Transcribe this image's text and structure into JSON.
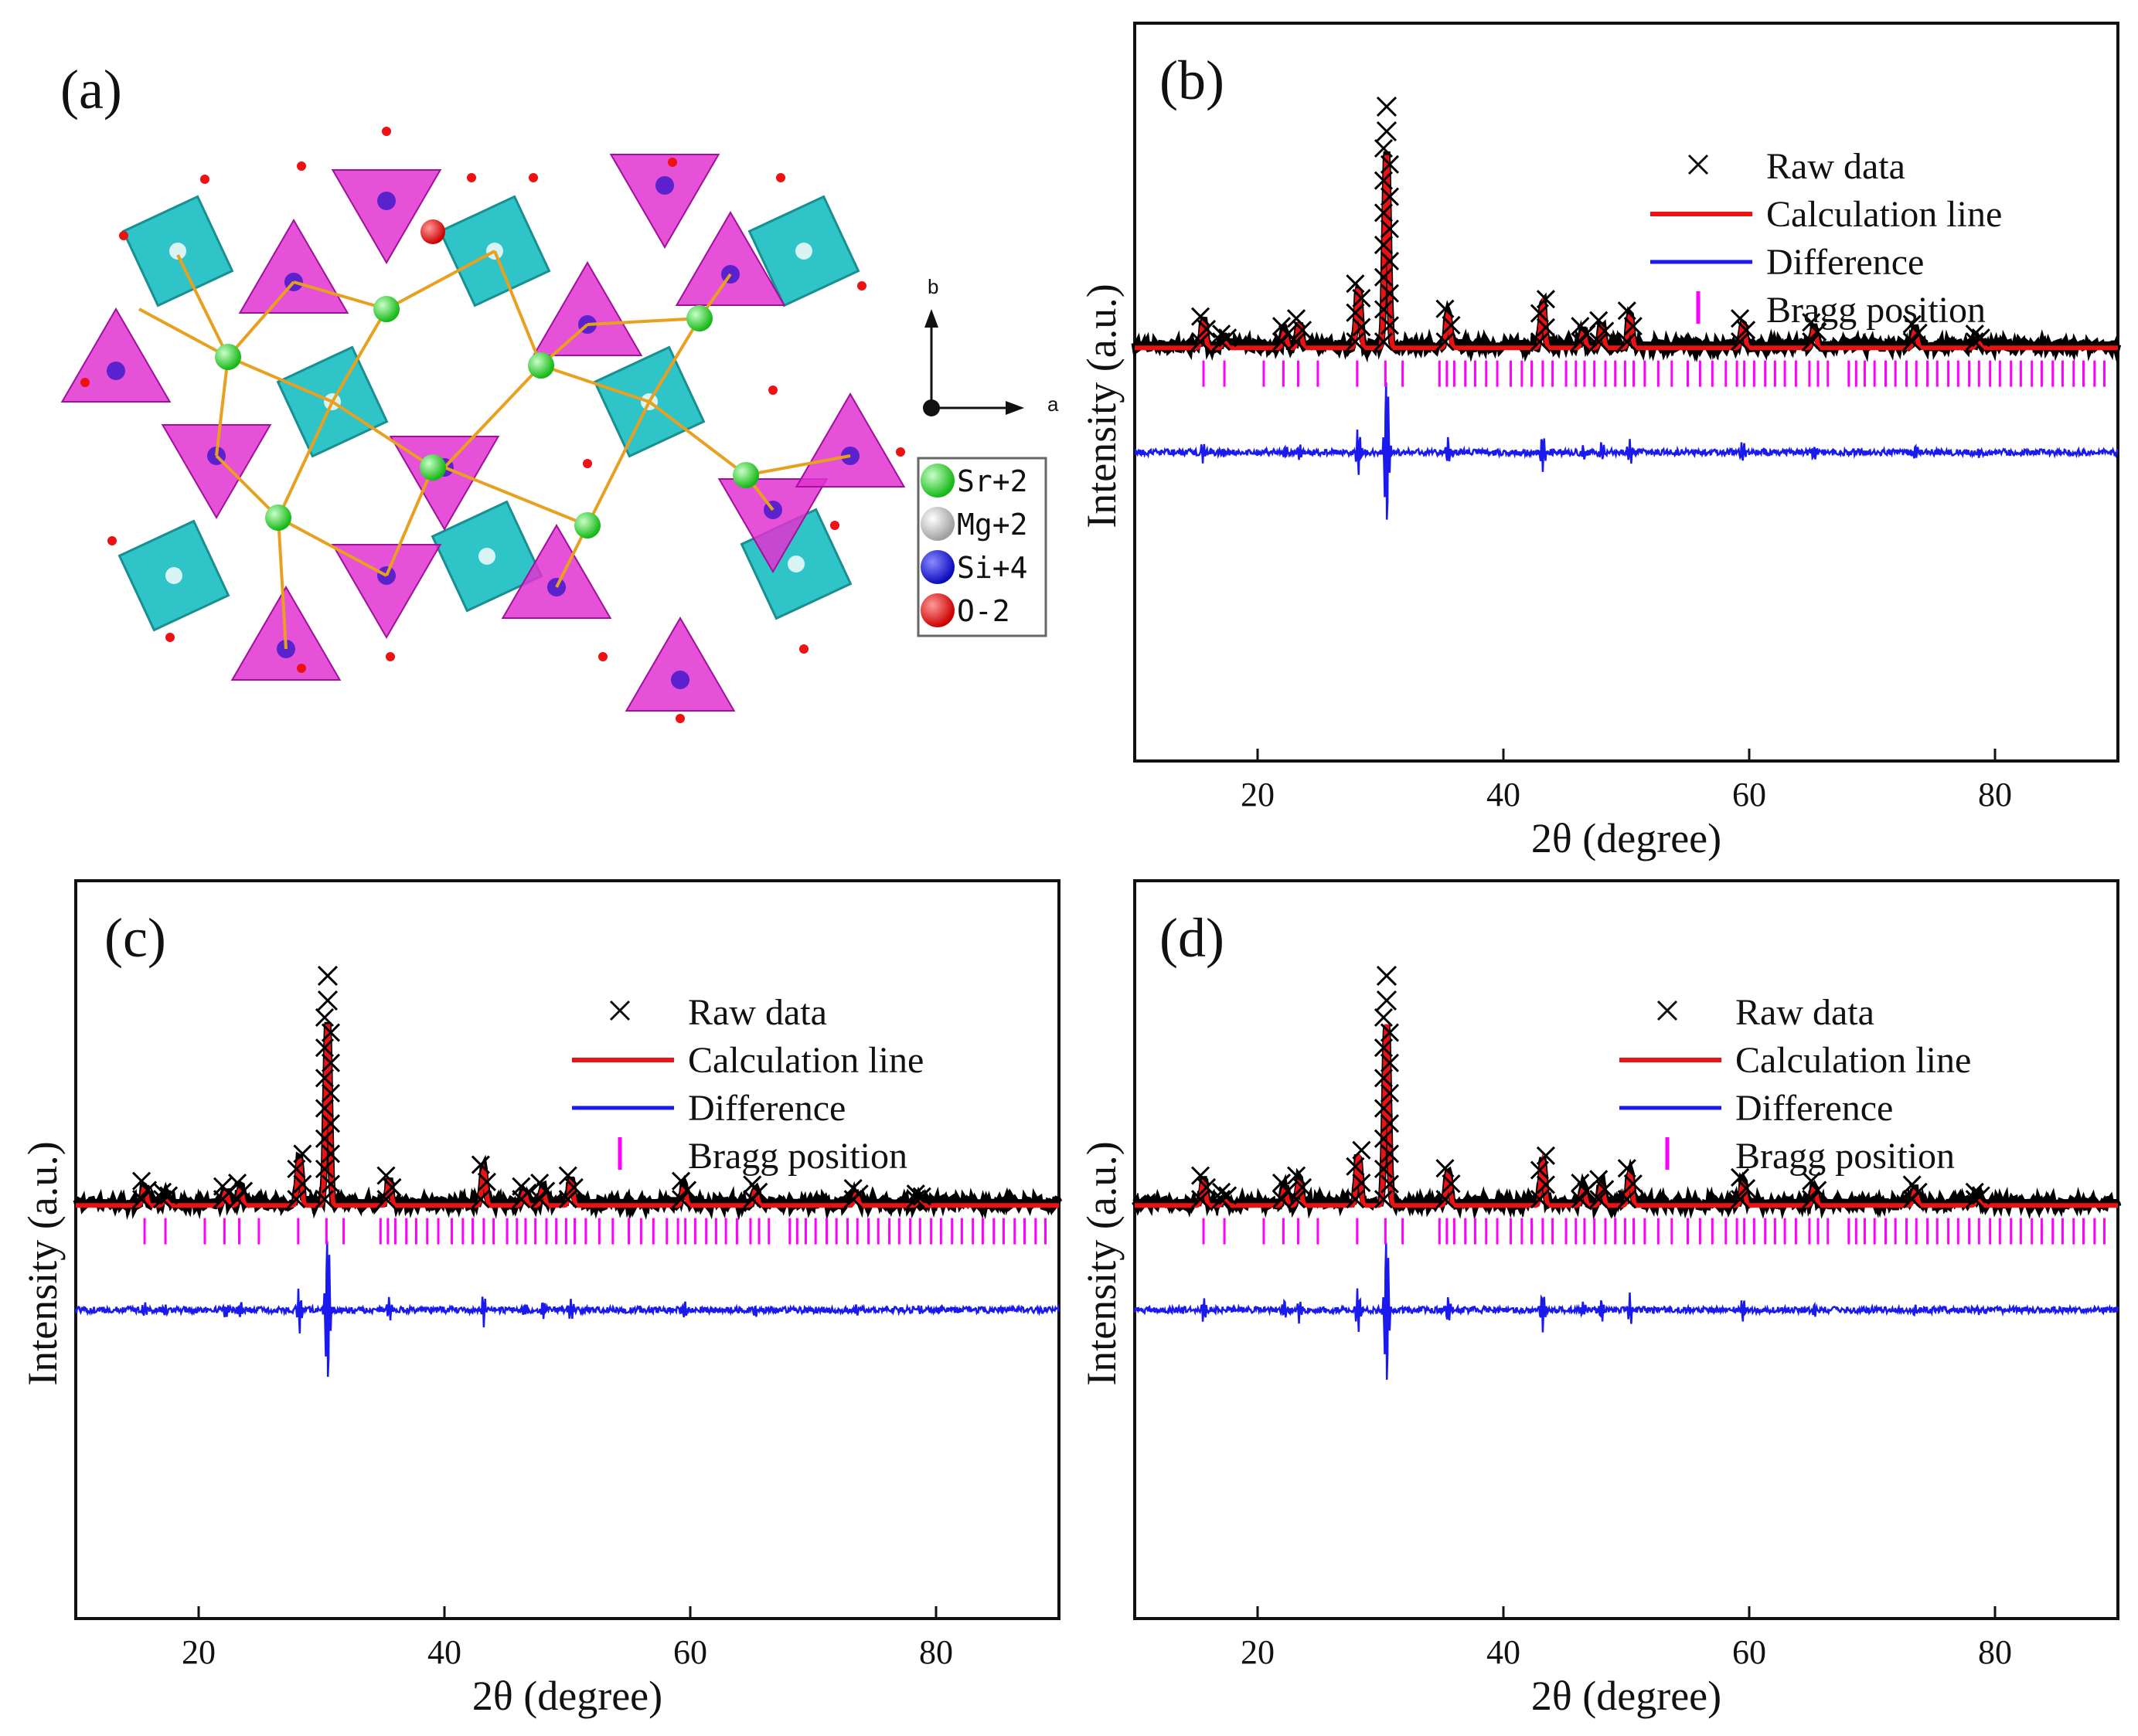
{
  "panel_a": {
    "label": "(a)",
    "axes": {
      "b_label": "b",
      "a_label": "a"
    },
    "legend": [
      {
        "name": "Sr+2",
        "color": "#22dd22"
      },
      {
        "name": "Mg+2",
        "color": "#dddddd"
      },
      {
        "name": "Si+4",
        "color": "#1a1aee"
      },
      {
        "name": "O-2",
        "color": "#ee1111"
      }
    ],
    "colors": {
      "octahedron": "#2ec4c8",
      "tetrahedron": "#e033d0",
      "bond": "#e8a020"
    }
  },
  "chart_data": [
    {
      "id": "b",
      "type": "line",
      "label": "(b)",
      "xlabel": "2θ (degree)",
      "ylabel": "Intensity (a.u.)",
      "xlim": [
        10,
        90
      ],
      "xticks": [
        20,
        40,
        60,
        80
      ],
      "legend": [
        "Raw data",
        "Calculation line",
        "Difference",
        "Bragg position"
      ],
      "peaks": [
        [
          15.6,
          0.13
        ],
        [
          17.3,
          0.04
        ],
        [
          22.2,
          0.08
        ],
        [
          23.4,
          0.12
        ],
        [
          28.2,
          0.3
        ],
        [
          30.5,
          1.0
        ],
        [
          35.5,
          0.17
        ],
        [
          43.2,
          0.22
        ],
        [
          46.5,
          0.08
        ],
        [
          48.0,
          0.11
        ],
        [
          50.3,
          0.16
        ],
        [
          59.5,
          0.12
        ],
        [
          65.3,
          0.1
        ],
        [
          73.5,
          0.09
        ],
        [
          78.6,
          0.04
        ]
      ],
      "bragg": [
        15.6,
        17.3,
        20.5,
        22.1,
        23.3,
        24.9,
        28.1,
        30.4,
        31.8,
        34.8,
        35.4,
        36.0,
        36.9,
        37.7,
        38.6,
        39.5,
        40.6,
        41.5,
        42.3,
        43.2,
        44.0,
        45.1,
        45.9,
        46.6,
        47.4,
        48.3,
        49.1,
        49.9,
        50.6,
        51.5,
        52.6,
        53.7,
        55.0,
        56.0,
        57.0,
        58.1,
        59.0,
        59.6,
        60.4,
        61.3,
        62.1,
        62.9,
        63.8,
        64.9,
        65.6,
        66.4,
        68.1,
        68.7,
        69.4,
        70.2,
        71.1,
        71.9,
        72.8,
        73.6,
        74.5,
        75.3,
        76.2,
        77.0,
        77.9,
        78.7,
        79.6,
        80.4,
        81.3,
        82.1,
        83.0,
        83.8,
        84.7,
        85.5,
        86.4,
        87.2,
        88.1,
        88.9
      ]
    },
    {
      "id": "c",
      "type": "line",
      "label": "(c)",
      "xlabel": "2θ (degree)",
      "ylabel": "Intensity (a.u.)",
      "xlim": [
        10,
        90
      ],
      "xticks": [
        20,
        40,
        60,
        80
      ],
      "legend": [
        "Raw data",
        "Calculation line",
        "Difference",
        "Bragg position"
      ],
      "peaks": [
        [
          15.6,
          0.1
        ],
        [
          17.3,
          0.04
        ],
        [
          22.2,
          0.07
        ],
        [
          23.4,
          0.09
        ],
        [
          28.2,
          0.25
        ],
        [
          30.5,
          1.0
        ],
        [
          35.5,
          0.13
        ],
        [
          43.2,
          0.19
        ],
        [
          46.5,
          0.07
        ],
        [
          48.0,
          0.09
        ],
        [
          50.3,
          0.13
        ],
        [
          59.5,
          0.1
        ],
        [
          65.3,
          0.08
        ],
        [
          73.5,
          0.06
        ],
        [
          78.6,
          0.03
        ]
      ],
      "bragg": [
        15.6,
        17.3,
        20.5,
        22.1,
        23.3,
        24.9,
        28.1,
        30.4,
        31.8,
        34.8,
        35.4,
        36.0,
        36.9,
        37.7,
        38.6,
        39.5,
        40.6,
        41.5,
        42.3,
        43.2,
        44.0,
        45.1,
        45.9,
        46.6,
        47.4,
        48.3,
        49.1,
        49.9,
        50.6,
        51.5,
        52.6,
        53.7,
        55.0,
        56.0,
        57.0,
        58.1,
        59.0,
        59.6,
        60.4,
        61.3,
        62.1,
        62.9,
        63.8,
        64.9,
        65.6,
        66.4,
        68.1,
        68.7,
        69.4,
        70.2,
        71.1,
        71.9,
        72.8,
        73.6,
        74.5,
        75.3,
        76.2,
        77.0,
        77.9,
        78.7,
        79.6,
        80.4,
        81.3,
        82.1,
        83.0,
        83.8,
        84.7,
        85.5,
        86.4,
        87.2,
        88.1,
        88.9
      ]
    },
    {
      "id": "d",
      "type": "line",
      "label": "(d)",
      "xlabel": "2θ (degree)",
      "ylabel": "Intensity (a.u.)",
      "xlim": [
        10,
        90
      ],
      "xticks": [
        20,
        40,
        60,
        80
      ],
      "legend": [
        "Raw data",
        "Calculation line",
        "Difference",
        "Bragg position"
      ],
      "peaks": [
        [
          15.6,
          0.13
        ],
        [
          17.3,
          0.04
        ],
        [
          22.2,
          0.09
        ],
        [
          23.4,
          0.13
        ],
        [
          28.2,
          0.27
        ],
        [
          30.5,
          1.0
        ],
        [
          35.5,
          0.17
        ],
        [
          43.2,
          0.24
        ],
        [
          46.5,
          0.09
        ],
        [
          48.0,
          0.11
        ],
        [
          50.3,
          0.17
        ],
        [
          59.5,
          0.12
        ],
        [
          65.3,
          0.1
        ],
        [
          73.5,
          0.08
        ],
        [
          78.6,
          0.04
        ]
      ],
      "bragg": [
        15.6,
        17.3,
        20.5,
        22.1,
        23.3,
        24.9,
        28.1,
        30.4,
        31.8,
        34.8,
        35.4,
        36.0,
        36.9,
        37.7,
        38.6,
        39.5,
        40.6,
        41.5,
        42.3,
        43.2,
        44.0,
        45.1,
        45.9,
        46.6,
        47.4,
        48.3,
        49.1,
        49.9,
        50.6,
        51.5,
        52.6,
        53.7,
        55.0,
        56.0,
        57.0,
        58.1,
        59.0,
        59.6,
        60.4,
        61.3,
        62.1,
        62.9,
        63.8,
        64.9,
        65.6,
        66.4,
        68.1,
        68.7,
        69.4,
        70.2,
        71.1,
        71.9,
        72.8,
        73.6,
        74.5,
        75.3,
        76.2,
        77.0,
        77.9,
        78.7,
        79.6,
        80.4,
        81.3,
        82.1,
        83.0,
        83.8,
        84.7,
        85.5,
        86.4,
        87.2,
        88.1,
        88.9
      ]
    }
  ],
  "series_colors": {
    "raw": "#000000",
    "calc": "#ee1111",
    "diff": "#1a1aee",
    "bragg": "#ff00ff"
  }
}
